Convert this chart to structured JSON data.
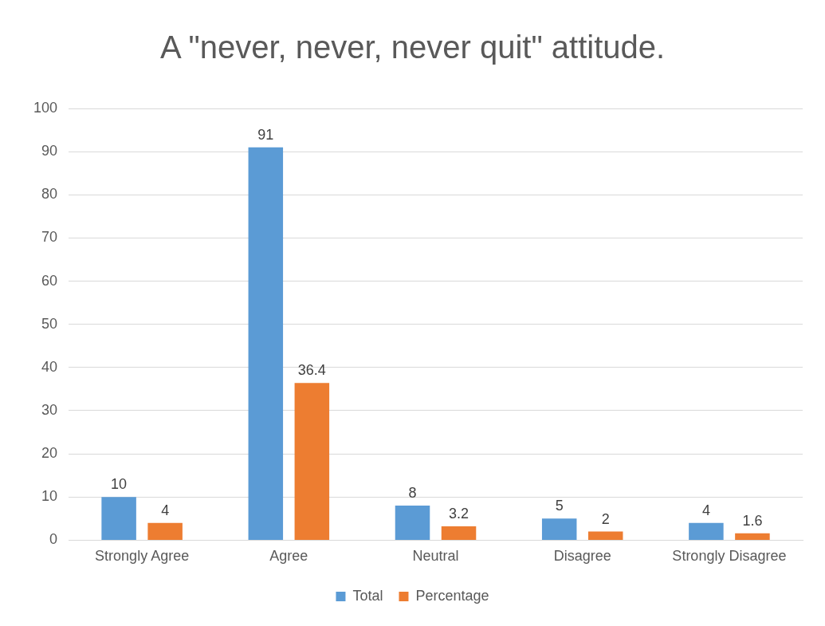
{
  "chart_data": {
    "type": "bar",
    "title": "A \"never, never, never quit\" attitude.",
    "categories": [
      "Strongly Agree",
      "Agree",
      "Neutral",
      "Disagree",
      "Strongly Disagree"
    ],
    "series": [
      {
        "name": "Total",
        "color": "#5b9bd5",
        "values": [
          10,
          91,
          8,
          5,
          4
        ]
      },
      {
        "name": "Percentage",
        "color": "#ed7d31",
        "values": [
          4,
          36.4,
          3.2,
          2,
          1.6
        ]
      }
    ],
    "ylim": [
      0,
      100
    ],
    "yticks": [
      0,
      10,
      20,
      30,
      40,
      50,
      60,
      70,
      80,
      90,
      100
    ],
    "grid": "y",
    "legend": "bottom",
    "data_labels": true
  }
}
